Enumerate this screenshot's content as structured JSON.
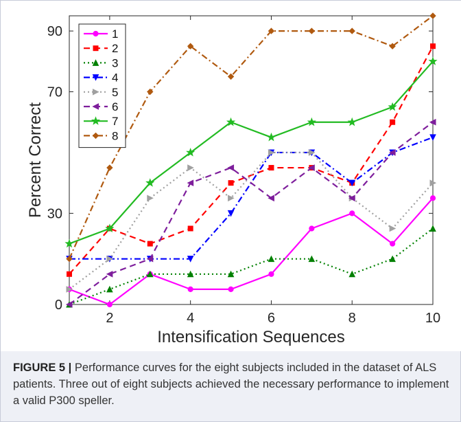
{
  "figure": {
    "label": "FIGURE 5 |",
    "caption": " Performance curves for the eight subjects included in the dataset of ALS patients. Three out of eight subjects achieved the necessary performance to implement a valid P300 speller."
  },
  "chart_data": {
    "type": "line",
    "xlabel": "Intensification Sequences",
    "ylabel": "Percent Correct",
    "xlim": [
      1,
      10
    ],
    "ylim": [
      0,
      95
    ],
    "xticks": [
      2,
      4,
      6,
      8,
      10
    ],
    "yticks": [
      0,
      30,
      70,
      90
    ],
    "grid": false,
    "legend_position": "top-left",
    "x": [
      1,
      2,
      3,
      4,
      5,
      6,
      7,
      8,
      9,
      10
    ],
    "series": [
      {
        "name": "1",
        "color": "#ff00ff",
        "dash": "solid",
        "marker": "circle",
        "values": [
          5,
          0,
          10,
          5,
          5,
          10,
          25,
          30,
          20,
          35
        ]
      },
      {
        "name": "2",
        "color": "#ff0000",
        "dash": "dashed",
        "marker": "square",
        "values": [
          10,
          25,
          20,
          25,
          40,
          45,
          45,
          40,
          60,
          85
        ]
      },
      {
        "name": "3",
        "color": "#008000",
        "dash": "dotted",
        "marker": "triangle-up",
        "values": [
          0,
          5,
          10,
          10,
          10,
          15,
          15,
          10,
          15,
          25
        ]
      },
      {
        "name": "4",
        "color": "#0000ff",
        "dash": "dashdot",
        "marker": "triangle-down",
        "values": [
          15,
          15,
          15,
          15,
          30,
          50,
          50,
          40,
          50,
          55
        ]
      },
      {
        "name": "5",
        "color": "#a0a0a0",
        "dash": "dotted",
        "marker": "triangle-right",
        "values": [
          5,
          15,
          35,
          45,
          35,
          50,
          50,
          35,
          25,
          40
        ]
      },
      {
        "name": "6",
        "color": "#7e1e9c",
        "dash": "dashed",
        "marker": "triangle-left",
        "values": [
          0,
          10,
          15,
          40,
          45,
          35,
          45,
          35,
          50,
          60
        ]
      },
      {
        "name": "7",
        "color": "#22bb22",
        "dash": "solid",
        "marker": "star",
        "values": [
          20,
          25,
          40,
          50,
          60,
          55,
          60,
          60,
          65,
          80
        ]
      },
      {
        "name": "8",
        "color": "#b05a10",
        "dash": "dashdot",
        "marker": "diamond",
        "values": [
          15,
          45,
          70,
          85,
          75,
          90,
          90,
          90,
          85,
          95
        ]
      }
    ]
  }
}
